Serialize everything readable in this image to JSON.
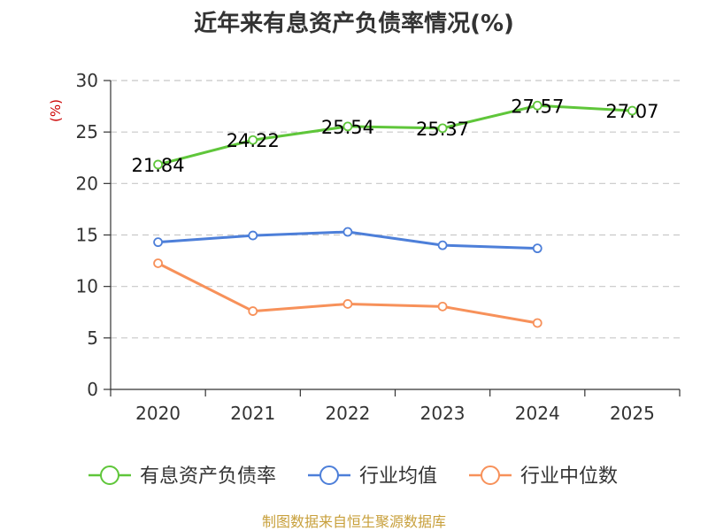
{
  "chart_data": {
    "type": "line",
    "title": "近年来有息资产负债率情况(%)",
    "ylabel": "(%)",
    "xlabel": "",
    "categories": [
      "2020",
      "2021",
      "2022",
      "2023",
      "2024",
      "2025"
    ],
    "ylim": [
      0,
      30
    ],
    "yticks": [
      0,
      5,
      10,
      15,
      20,
      25,
      30
    ],
    "grid": true,
    "legend_position": "bottom",
    "series": [
      {
        "name": "有息资产负债率",
        "color": "#5fc63a",
        "values": [
          21.84,
          24.22,
          25.54,
          25.37,
          27.57,
          27.07
        ],
        "labels": [
          "21.84",
          "24.22",
          "25.54",
          "25.37",
          "27.57",
          "27.07"
        ]
      },
      {
        "name": "行业均值",
        "color": "#4d7fd9",
        "values": [
          14.3,
          14.95,
          15.3,
          14.0,
          13.7,
          null
        ]
      },
      {
        "name": "行业中位数",
        "color": "#f7915a",
        "values": [
          12.25,
          7.6,
          8.3,
          8.05,
          6.45,
          null
        ]
      }
    ],
    "source": "制图数据来自恒生聚源数据库",
    "colors": {
      "title": "#333333",
      "ylabel": "#cc0000",
      "source": "#c8a03c",
      "grid": "#c8c8c8",
      "axis": "#333333"
    }
  }
}
